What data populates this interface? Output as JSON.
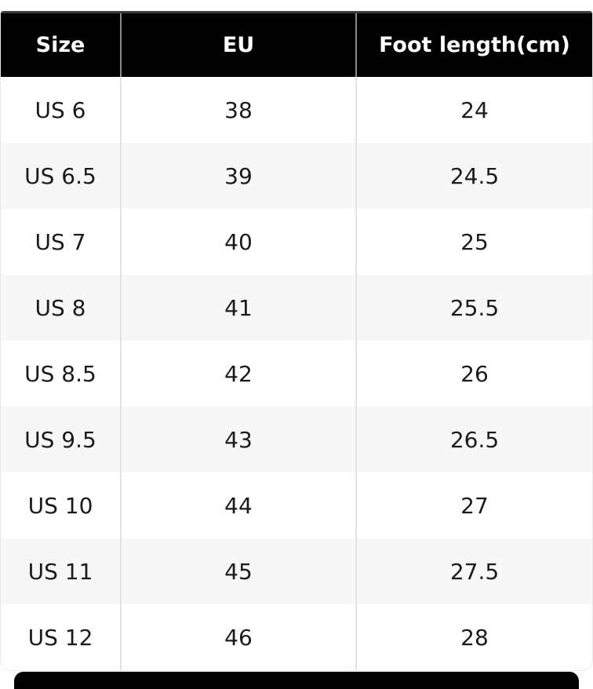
{
  "page": {
    "background_color": "#ffffff"
  },
  "table": {
    "columns": [
      "Size",
      "EU",
      "Foot length(cm)"
    ],
    "rows": [
      {
        "size": "US 6",
        "eu": "38",
        "foot_length_cm": "24"
      },
      {
        "size": "US 6.5",
        "eu": "39",
        "foot_length_cm": "24.5"
      },
      {
        "size": "US 7",
        "eu": "40",
        "foot_length_cm": "25"
      },
      {
        "size": "US 8",
        "eu": "41",
        "foot_length_cm": "25.5"
      },
      {
        "size": "US 8.5",
        "eu": "42",
        "foot_length_cm": "26"
      },
      {
        "size": "US 9.5",
        "eu": "43",
        "foot_length_cm": "26.5"
      },
      {
        "size": "US 10",
        "eu": "44",
        "foot_length_cm": "27"
      },
      {
        "size": "US 11",
        "eu": "45",
        "foot_length_cm": "27.5"
      },
      {
        "size": "US 12",
        "eu": "46",
        "foot_length_cm": "28"
      }
    ],
    "colors": {
      "header_background": "#000000",
      "header_text": "#ffffff",
      "header_divider": "#8a8a8a",
      "header_top_border": "#3d3d3d",
      "zebra_row_background": "#f7f7f7",
      "row_background": "#ffffff",
      "body_text": "#1b1b1b",
      "body_divider": "#e3e3e3",
      "outer_border": "#e9e9e9",
      "next_section_bar": "#000000"
    }
  },
  "chart_data": {
    "type": "table",
    "title": "",
    "columns": [
      "Size",
      "EU",
      "Foot length(cm)"
    ],
    "rows": [
      [
        "US 6",
        "38",
        "24"
      ],
      [
        "US 6.5",
        "39",
        "24.5"
      ],
      [
        "US 7",
        "40",
        "25"
      ],
      [
        "US 8",
        "41",
        "25.5"
      ],
      [
        "US 8.5",
        "42",
        "26"
      ],
      [
        "US 9.5",
        "43",
        "26.5"
      ],
      [
        "US 10",
        "44",
        "27"
      ],
      [
        "US 11",
        "45",
        "27.5"
      ],
      [
        "US 12",
        "46",
        "28"
      ]
    ],
    "layout_hints": {
      "header_style": "black background, white bold text",
      "zebra_striping": true,
      "column_alignment": "center",
      "rounded_bottom_corners": true
    }
  }
}
